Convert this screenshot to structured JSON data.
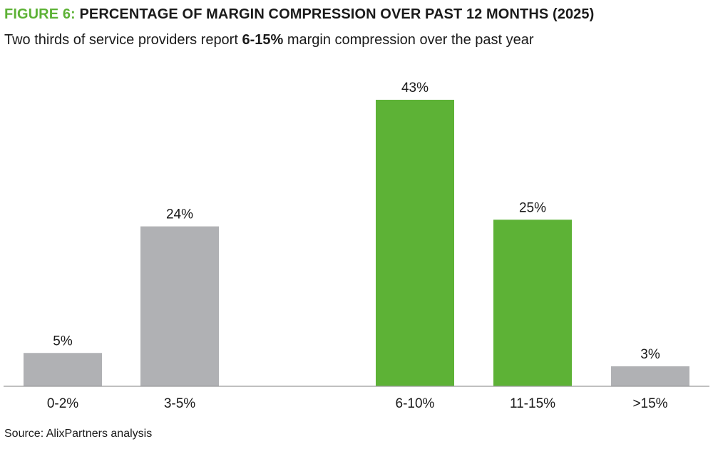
{
  "title": {
    "figure_label": "FIGURE 6:",
    "text": " PERCENTAGE OF MARGIN COMPRESSION OVER PAST 12 MONTHS (2025)"
  },
  "subtitle": {
    "prefix": "Two thirds of service providers report ",
    "highlight": "6-15%",
    "suffix": " margin compression over the past year"
  },
  "source": "Source: AlixPartners analysis",
  "colors": {
    "grey": "#b0b1b4",
    "green": "#5db236",
    "accent": "#5db236",
    "axis": "#9a9a9a"
  },
  "chart_data": {
    "type": "bar",
    "categories": [
      "0-2%",
      "3-5%",
      "6-10%",
      "11-15%",
      ">15%"
    ],
    "values": [
      5,
      24,
      43,
      25,
      3
    ],
    "value_labels": [
      "5%",
      "24%",
      "43%",
      "25%",
      "3%"
    ],
    "bar_colors": [
      "grey",
      "grey",
      "green",
      "green",
      "grey"
    ],
    "ylim": [
      0,
      43
    ],
    "grid": false,
    "legend": "none"
  }
}
